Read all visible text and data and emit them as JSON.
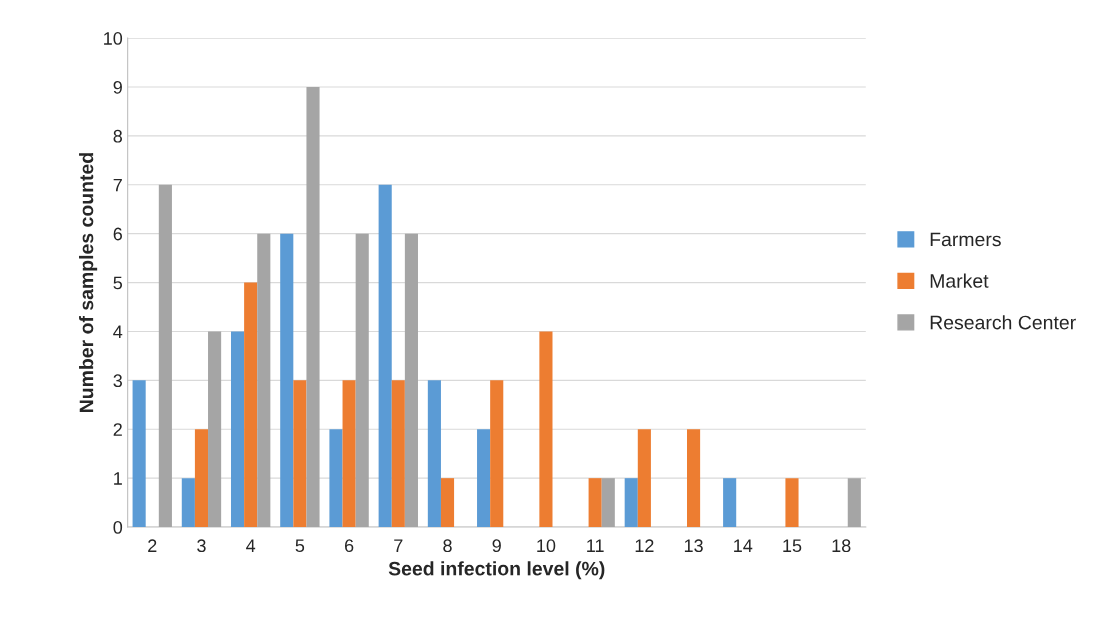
{
  "chart_data": {
    "type": "bar",
    "xlabel": "Seed infection level (%)",
    "ylabel": "Number of samples counted",
    "categories": [
      "2",
      "3",
      "4",
      "5",
      "6",
      "7",
      "8",
      "9",
      "10",
      "11",
      "12",
      "13",
      "14",
      "15",
      "18"
    ],
    "series": [
      {
        "name": "Farmers",
        "color": "#5b9bd5",
        "values": [
          3,
          1,
          4,
          6,
          2,
          7,
          3,
          2,
          0,
          0,
          1,
          0,
          1,
          0,
          0
        ]
      },
      {
        "name": "Market",
        "color": "#ed7d31",
        "values": [
          0,
          2,
          5,
          3,
          3,
          3,
          1,
          3,
          4,
          1,
          2,
          2,
          0,
          1,
          0
        ]
      },
      {
        "name": "Research Center",
        "color": "#a5a5a5",
        "values": [
          7,
          4,
          6,
          9,
          6,
          6,
          0,
          0,
          0,
          1,
          0,
          0,
          0,
          0,
          1
        ]
      }
    ],
    "ylim": [
      0,
      10
    ],
    "yticks": [
      0,
      1,
      2,
      3,
      4,
      5,
      6,
      7,
      8,
      9,
      10
    ],
    "grid": "y",
    "legend": "right"
  }
}
